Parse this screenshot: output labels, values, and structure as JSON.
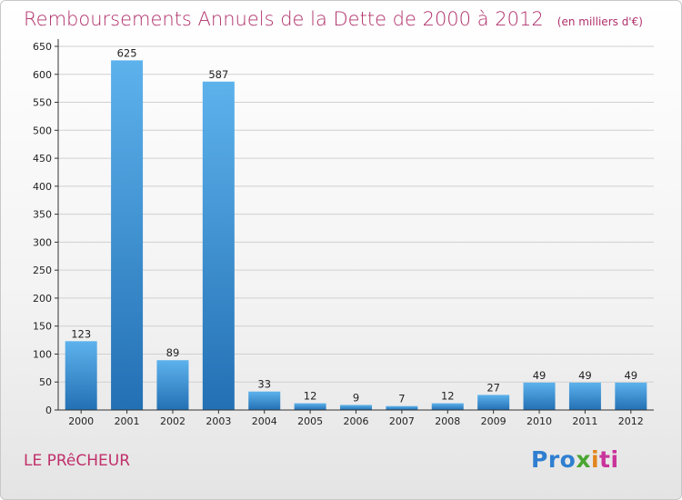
{
  "title": "Remboursements Annuels de la Dette de 2000 à 2012",
  "unit": "(en milliers d'€)",
  "commune": "LE PRêCHEUR",
  "logo": {
    "p1": "Pro",
    "p2": "x",
    "p3": "i",
    "p4": "ti"
  },
  "colors": {
    "title": "#b0306a",
    "bar_light": "#5db2ec",
    "bar_dark": "#2370b4",
    "grid": "#d0d0d0"
  },
  "chart_data": {
    "type": "bar",
    "title": "Remboursements Annuels de la Dette de 2000 à 2012",
    "subtitle": "(en milliers d'€)",
    "categories": [
      "2000",
      "2001",
      "2002",
      "2003",
      "2004",
      "2005",
      "2006",
      "2007",
      "2008",
      "2009",
      "2010",
      "2011",
      "2012"
    ],
    "values": [
      123,
      625,
      89,
      587,
      33,
      12,
      9,
      7,
      12,
      27,
      49,
      49,
      49
    ],
    "ylim": [
      0,
      650
    ],
    "yticks": [
      0,
      50,
      100,
      150,
      200,
      250,
      300,
      350,
      400,
      450,
      500,
      550,
      600,
      650
    ],
    "grid": true,
    "legend": "none"
  }
}
